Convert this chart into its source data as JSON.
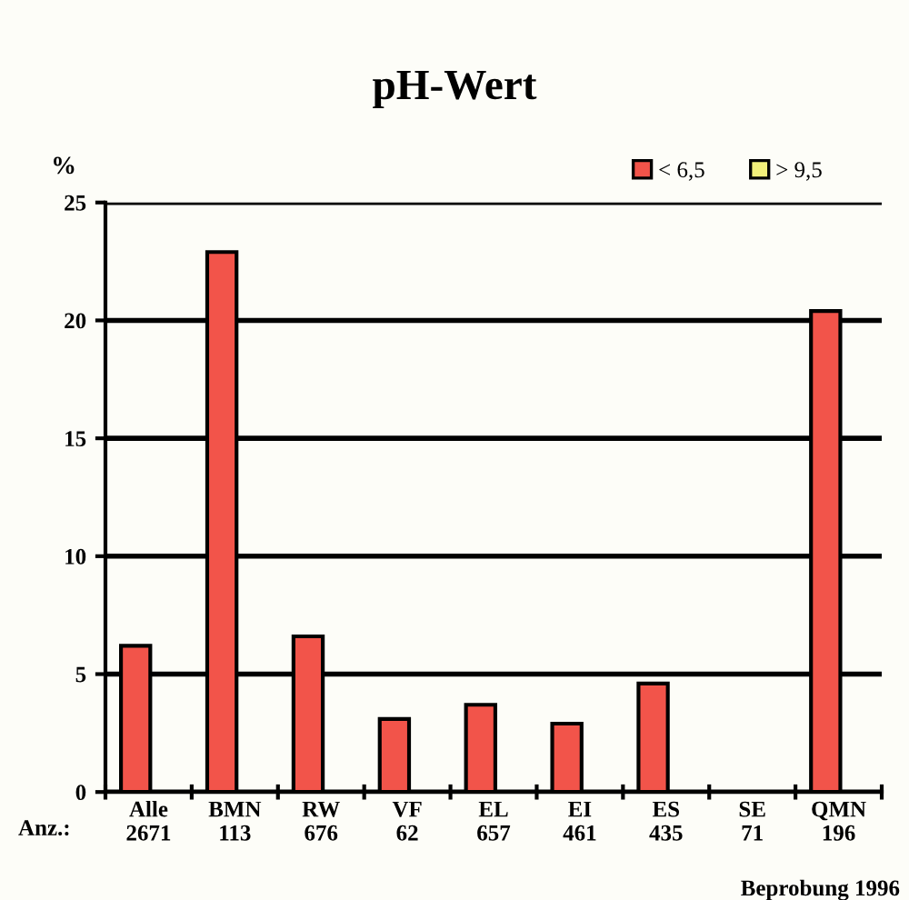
{
  "chart_data": {
    "type": "bar",
    "title": "pH-Wert",
    "ylabel": "%",
    "categories": [
      "Alle\n2671",
      "BMN\n113",
      "RW\n676",
      "VF\n62",
      "EL\n657",
      "EI\n461",
      "ES\n435",
      "SE\n71",
      "QMN\n196"
    ],
    "series": [
      {
        "name": "< 6,5",
        "color": "#f2544a",
        "values": [
          6.2,
          22.9,
          6.6,
          3.1,
          3.7,
          2.9,
          4.6,
          null,
          20.4
        ]
      },
      {
        "name": "> 9,5",
        "color": "#f2f07a",
        "values": [
          null,
          null,
          null,
          null,
          null,
          null,
          null,
          null,
          null
        ]
      }
    ],
    "ylim": [
      0,
      25
    ],
    "yticks": [
      0,
      5,
      10,
      15,
      20,
      25
    ],
    "grid": "y",
    "legend": "top right",
    "annotations": [
      "Anz.:",
      "Beprobung 1996"
    ]
  }
}
